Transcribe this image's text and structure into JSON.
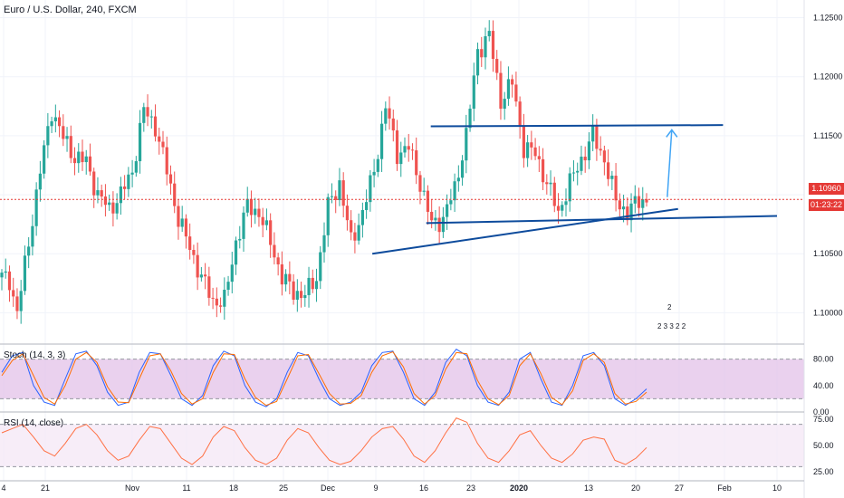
{
  "header": {
    "title": "Euro / U.S. Dollar, 240, FXCM"
  },
  "price_tags": {
    "last_price": "1.10960",
    "countdown": "01:23:22"
  },
  "indicators": {
    "stoch_label": "Stoch (14, 3, 3)",
    "rsi_label": "RSI (14, close)"
  },
  "events": {
    "badge_count": "2",
    "badge_row": "2 3 3 2 2"
  },
  "colors": {
    "up": "#26a69a",
    "down": "#ef5350",
    "trendline": "#0d4b9c",
    "target_arrow": "#42a5f5",
    "stoch_k": "#2962ff",
    "stoch_d": "#ff6d00",
    "stoch_band": "#e1bee7",
    "rsi_line": "#ff7043",
    "rsi_band": "#f3e5f5",
    "last_price_tag": "#e53935",
    "countdown_tag": "#e53935"
  },
  "chart_data": {
    "type": "candlestick",
    "title": "Euro / U.S. Dollar, 240, FXCM",
    "price_axis": {
      "range": [
        1.0975,
        1.1265
      ],
      "ticks": [
        "1.12500",
        "1.12000",
        "1.11500",
        "1.10500",
        "1.10000"
      ]
    },
    "last_price": 1.1096,
    "time_axis": {
      "ticks": [
        "4",
        "21",
        "Nov",
        "11",
        "18",
        "25",
        "Dec",
        "9",
        "16",
        "23",
        "2020",
        "13",
        "20",
        "27",
        "Feb",
        "10"
      ]
    },
    "price_path": [
      [
        0,
        1.103
      ],
      [
        2,
        1.1028
      ],
      [
        4,
        1.1
      ],
      [
        7,
        1.106
      ],
      [
        10,
        1.112
      ],
      [
        13,
        1.1172
      ],
      [
        16,
        1.1148
      ],
      [
        19,
        1.1132
      ],
      [
        22,
        1.1128
      ],
      [
        25,
        1.11
      ],
      [
        28,
        1.1088
      ],
      [
        31,
        1.11
      ],
      [
        34,
        1.112
      ],
      [
        37,
        1.1172
      ],
      [
        40,
        1.1158
      ],
      [
        43,
        1.112
      ],
      [
        46,
        1.108
      ],
      [
        49,
        1.1055
      ],
      [
        52,
        1.103
      ],
      [
        55,
        1.101
      ],
      [
        58,
        1.101
      ],
      [
        61,
        1.106
      ],
      [
        64,
        1.109
      ],
      [
        67,
        1.1085
      ],
      [
        70,
        1.106
      ],
      [
        73,
        1.103
      ],
      [
        76,
        1.1018
      ],
      [
        79,
        1.1015
      ],
      [
        82,
        1.103
      ],
      [
        85,
        1.109
      ],
      [
        88,
        1.111
      ],
      [
        91,
        1.106
      ],
      [
        94,
        1.1085
      ],
      [
        97,
        1.112
      ],
      [
        100,
        1.1175
      ],
      [
        103,
        1.1135
      ],
      [
        106,
        1.114
      ],
      [
        109,
        1.111
      ],
      [
        112,
        1.1075
      ],
      [
        115,
        1.108
      ],
      [
        118,
        1.1105
      ],
      [
        121,
        1.115
      ],
      [
        124,
        1.1222
      ],
      [
        127,
        1.1235
      ],
      [
        130,
        1.118
      ],
      [
        133,
        1.1195
      ],
      [
        136,
        1.114
      ],
      [
        139,
        1.1135
      ],
      [
        142,
        1.111
      ],
      [
        145,
        1.1085
      ],
      [
        148,
        1.111
      ],
      [
        151,
        1.113
      ],
      [
        154,
        1.115
      ],
      [
        157,
        1.113
      ],
      [
        160,
        1.1095
      ],
      [
        163,
        1.1085
      ],
      [
        166,
        1.1095
      ],
      [
        168,
        1.1096
      ]
    ],
    "trendlines": [
      {
        "name": "resistance",
        "from": [
          1.1158,
          47.5
        ],
        "to": [
          1.1159,
          80
        ]
      },
      {
        "name": "support-horizontal",
        "from": [
          1.1076,
          47.0
        ],
        "to": [
          1.1082,
          86
        ]
      },
      {
        "name": "rising-support",
        "from": [
          1.105,
          41.0
        ],
        "to": [
          1.1088,
          75
        ]
      },
      {
        "name": "target-arrow",
        "from": [
          1.1098,
          73.8
        ],
        "to": [
          1.1155,
          74.3
        ]
      }
    ],
    "stoch": {
      "label": "Stoch (14, 3, 3)",
      "range": [
        0,
        100
      ],
      "band": [
        20,
        80
      ],
      "ticks": [
        "80.00",
        "40.00",
        "0.00"
      ],
      "k": [
        60,
        85,
        90,
        40,
        15,
        10,
        50,
        88,
        92,
        70,
        30,
        10,
        15,
        60,
        90,
        88,
        55,
        20,
        10,
        25,
        70,
        92,
        85,
        40,
        15,
        8,
        20,
        60,
        90,
        85,
        50,
        20,
        10,
        15,
        30,
        70,
        90,
        92,
        60,
        20,
        10,
        30,
        75,
        95,
        85,
        40,
        15,
        10,
        30,
        80,
        90,
        50,
        15,
        10,
        40,
        85,
        90,
        70,
        20,
        10,
        20,
        35
      ],
      "d": [
        55,
        78,
        88,
        55,
        22,
        12,
        40,
        80,
        90,
        75,
        38,
        15,
        14,
        50,
        85,
        88,
        62,
        28,
        12,
        20,
        60,
        88,
        87,
        50,
        22,
        10,
        16,
        50,
        85,
        87,
        58,
        28,
        12,
        13,
        25,
        60,
        85,
        91,
        68,
        28,
        12,
        25,
        65,
        90,
        88,
        48,
        20,
        11,
        25,
        70,
        88,
        58,
        22,
        11,
        32,
        78,
        88,
        75,
        28,
        12,
        16,
        30
      ]
    },
    "rsi": {
      "label": "RSI (14, close)",
      "range": [
        20,
        80
      ],
      "band": [
        30,
        70
      ],
      "ticks": [
        "75.00",
        "50.00",
        "25.00"
      ],
      "values": [
        62,
        66,
        70,
        58,
        45,
        40,
        52,
        66,
        70,
        60,
        45,
        36,
        40,
        55,
        68,
        66,
        52,
        38,
        32,
        40,
        58,
        68,
        64,
        48,
        36,
        32,
        38,
        55,
        66,
        62,
        48,
        36,
        32,
        35,
        45,
        58,
        66,
        68,
        56,
        40,
        34,
        45,
        62,
        76,
        72,
        52,
        38,
        34,
        45,
        60,
        64,
        50,
        38,
        34,
        42,
        55,
        58,
        56,
        36,
        32,
        38,
        48
      ]
    }
  }
}
